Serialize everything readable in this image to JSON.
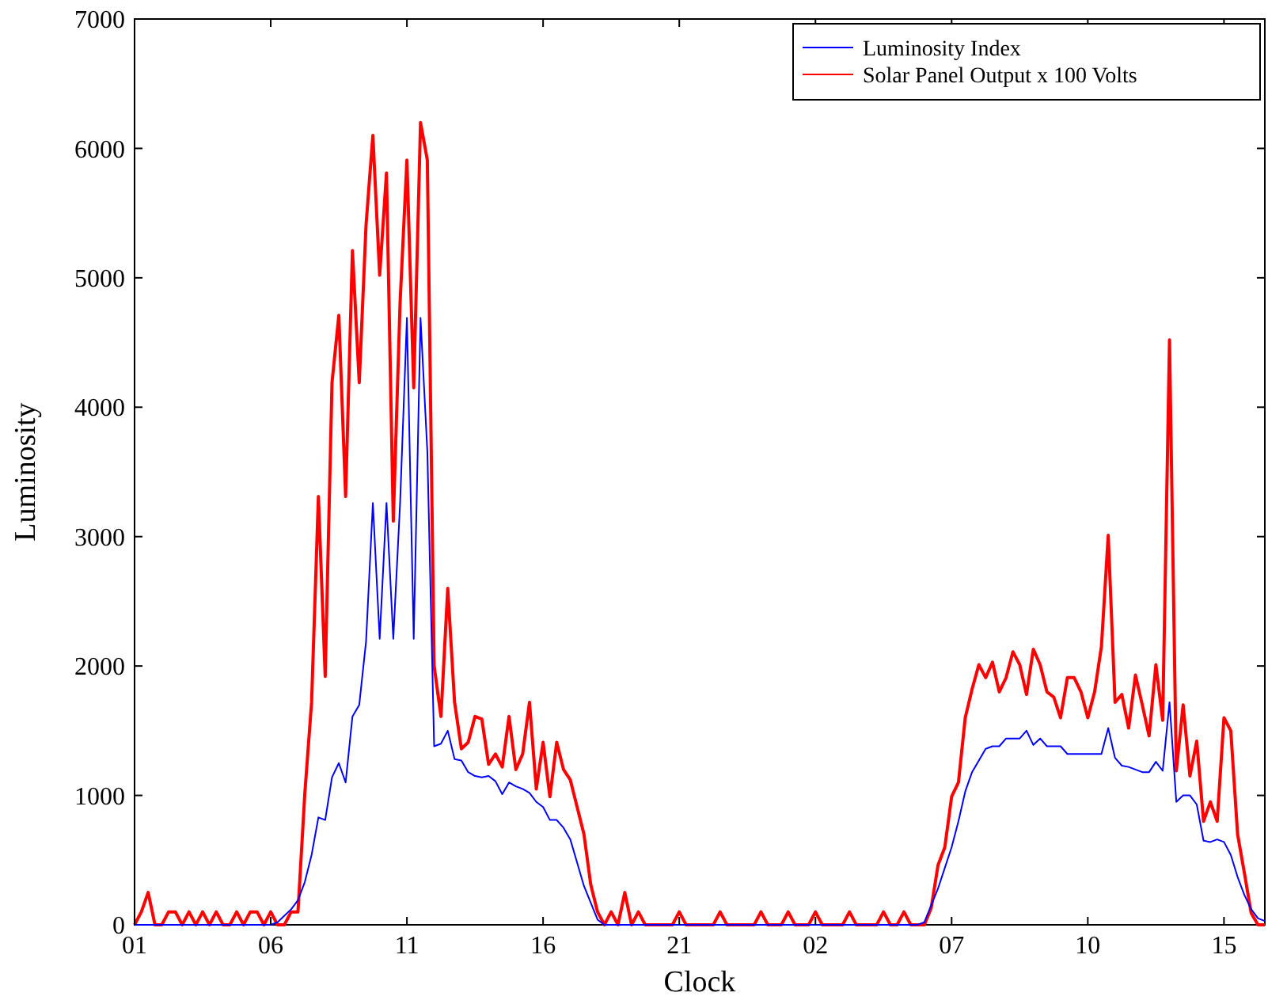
{
  "chart_data": {
    "type": "line",
    "xlabel": "Clock",
    "ylabel": "Luminosity",
    "categories": [
      "01",
      null,
      null,
      null,
      null,
      null,
      null,
      null,
      null,
      null,
      null,
      null,
      null,
      null,
      null,
      null,
      null,
      null,
      null,
      null,
      "06",
      null,
      null,
      null,
      null,
      null,
      null,
      null,
      null,
      null,
      null,
      null,
      null,
      null,
      null,
      null,
      null,
      null,
      null,
      null,
      "11",
      null,
      null,
      null,
      null,
      null,
      null,
      null,
      null,
      null,
      null,
      null,
      null,
      null,
      null,
      null,
      null,
      null,
      null,
      null,
      "16",
      null,
      null,
      null,
      null,
      null,
      null,
      null,
      null,
      null,
      null,
      null,
      null,
      null,
      null,
      null,
      null,
      null,
      null,
      null,
      "21",
      null,
      null,
      null,
      null,
      null,
      null,
      null,
      null,
      null,
      null,
      null,
      null,
      null,
      null,
      null,
      null,
      null,
      null,
      null,
      "02",
      null,
      null,
      null,
      null,
      null,
      null,
      null,
      null,
      null,
      null,
      null,
      null,
      null,
      null,
      null,
      null,
      null,
      null,
      null,
      "07",
      null,
      null,
      null,
      null,
      null,
      null,
      null,
      null,
      null,
      null,
      null,
      null,
      null,
      null,
      null,
      null,
      null,
      null,
      null,
      "10",
      null,
      null,
      null,
      null,
      null,
      null,
      null,
      null,
      null,
      null,
      null,
      null,
      null,
      null,
      null,
      null,
      null,
      null,
      null,
      "15",
      null,
      null,
      null,
      null,
      null,
      null
    ],
    "ylim": [
      0,
      7000
    ],
    "yticks": [
      0,
      1000,
      2000,
      3000,
      4000,
      5000,
      6000,
      7000
    ],
    "grid": false,
    "legend": "top right",
    "line_style": "solid",
    "marker": "none",
    "series": [
      {
        "name": "Luminosity Index",
        "color": "#0000ff",
        "values": [
          0,
          0,
          0,
          0,
          0,
          0,
          0,
          0,
          0,
          0,
          0,
          0,
          0,
          0,
          0,
          0,
          0,
          0,
          0,
          0,
          0,
          20,
          70,
          120,
          190,
          330,
          540,
          830,
          810,
          1140,
          1250,
          1100,
          1610,
          1700,
          2190,
          3260,
          2210,
          3260,
          2210,
          3260,
          4690,
          2210,
          4690,
          3660,
          1380,
          1400,
          1500,
          1280,
          1270,
          1180,
          1150,
          1140,
          1150,
          1110,
          1010,
          1100,
          1070,
          1050,
          1020,
          950,
          910,
          810,
          810,
          750,
          660,
          480,
          300,
          170,
          40,
          0,
          0,
          0,
          0,
          0,
          0,
          0,
          0,
          0,
          0,
          0,
          0,
          0,
          0,
          0,
          0,
          0,
          0,
          0,
          0,
          0,
          0,
          0,
          0,
          0,
          0,
          0,
          0,
          0,
          0,
          0,
          0,
          0,
          0,
          0,
          0,
          0,
          0,
          0,
          0,
          0,
          0,
          0,
          0,
          0,
          0,
          0,
          20,
          150,
          280,
          440,
          600,
          800,
          1030,
          1180,
          1270,
          1360,
          1380,
          1380,
          1440,
          1440,
          1440,
          1500,
          1390,
          1440,
          1380,
          1380,
          1380,
          1320,
          1320,
          1320,
          1320,
          1320,
          1320,
          1520,
          1290,
          1230,
          1220,
          1200,
          1180,
          1180,
          1260,
          1190,
          1720,
          950,
          1000,
          1000,
          930,
          650,
          640,
          660,
          640,
          540,
          370,
          230,
          120,
          50,
          30
        ]
      },
      {
        "name": "Solar Panel Output x 100 Volts",
        "color": "#ff0000",
        "values": [
          0,
          100,
          250,
          0,
          0,
          100,
          100,
          0,
          100,
          0,
          100,
          0,
          100,
          0,
          0,
          100,
          0,
          100,
          100,
          0,
          100,
          0,
          0,
          100,
          100,
          1010,
          1720,
          3310,
          1920,
          4190,
          4710,
          3310,
          5210,
          4190,
          5410,
          6100,
          5020,
          5810,
          3120,
          4810,
          5910,
          4150,
          6200,
          5910,
          2000,
          1610,
          2600,
          1720,
          1360,
          1410,
          1610,
          1590,
          1240,
          1320,
          1220,
          1610,
          1200,
          1320,
          1720,
          1050,
          1410,
          990,
          1410,
          1200,
          1120,
          910,
          700,
          310,
          100,
          0,
          100,
          0,
          250,
          0,
          100,
          0,
          0,
          0,
          0,
          0,
          100,
          0,
          0,
          0,
          0,
          0,
          100,
          0,
          0,
          0,
          0,
          0,
          100,
          0,
          0,
          0,
          100,
          0,
          0,
          0,
          100,
          0,
          0,
          0,
          0,
          100,
          0,
          0,
          0,
          0,
          100,
          0,
          0,
          100,
          0,
          0,
          0,
          130,
          460,
          600,
          990,
          1100,
          1600,
          1820,
          2010,
          1910,
          2030,
          1800,
          1910,
          2110,
          2010,
          1780,
          2130,
          2010,
          1800,
          1760,
          1600,
          1910,
          1910,
          1800,
          1600,
          1800,
          2150,
          3010,
          1720,
          1780,
          1520,
          1930,
          1700,
          1460,
          2010,
          1580,
          4520,
          1190,
          1700,
          1150,
          1420,
          800,
          950,
          800,
          1600,
          1500,
          700,
          400,
          90,
          0,
          0
        ]
      }
    ]
  }
}
